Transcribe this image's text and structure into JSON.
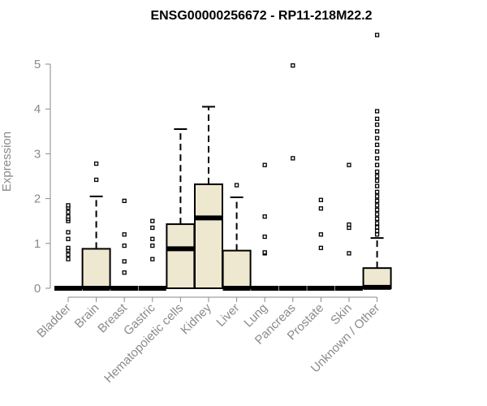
{
  "chart_data": {
    "type": "box",
    "title": "ENSG00000256672 - RP11-218M22.2",
    "xlabel": "",
    "ylabel": "Expression",
    "ylim": [
      -0.1,
      5.7
    ],
    "yticks": [
      0,
      1,
      2,
      3,
      4,
      5
    ],
    "grid": false,
    "legend": "none",
    "colors": {
      "box_fill": "#efe8d0",
      "box_stroke": "#000000",
      "axis": "#8a8a8a"
    },
    "categories": [
      "Bladder",
      "Brain",
      "Breast",
      "Gastric",
      "Hematopoietic cells",
      "Kidney",
      "Liver",
      "Lung",
      "Pancreas",
      "Prostate",
      "Skin",
      "Unknown / Other"
    ],
    "boxes": [
      {
        "min": 0,
        "q1": 0,
        "median": 0,
        "q3": 0,
        "max": 0,
        "outliers": [
          0.65,
          0.75,
          0.85,
          0.9,
          1.1,
          1.25,
          1.5,
          1.55,
          1.6,
          1.7,
          1.8,
          1.85
        ]
      },
      {
        "min": 0,
        "q1": 0,
        "median": 0,
        "q3": 0.88,
        "max": 2.05,
        "outliers": [
          2.42,
          2.78
        ]
      },
      {
        "min": 0,
        "q1": 0,
        "median": 0,
        "q3": 0,
        "max": 0,
        "outliers": [
          0.35,
          0.6,
          0.95,
          1.2,
          1.95
        ]
      },
      {
        "min": 0,
        "q1": 0,
        "median": 0,
        "q3": 0,
        "max": 0,
        "outliers": [
          0.65,
          0.95,
          1.1,
          1.35,
          1.5
        ]
      },
      {
        "min": 0,
        "q1": 0,
        "median": 0.88,
        "q3": 1.43,
        "max": 3.55,
        "outliers": []
      },
      {
        "min": 0,
        "q1": 0,
        "median": 1.57,
        "q3": 2.32,
        "max": 4.05,
        "outliers": []
      },
      {
        "min": 0,
        "q1": 0,
        "median": 0,
        "q3": 0.84,
        "max": 2.03,
        "outliers": [
          2.3
        ]
      },
      {
        "min": 0,
        "q1": 0,
        "median": 0,
        "q3": 0,
        "max": 0,
        "outliers": [
          0.78,
          0.8,
          1.15,
          1.6,
          2.75
        ]
      },
      {
        "min": 0,
        "q1": 0,
        "median": 0,
        "q3": 0,
        "max": 0,
        "outliers": [
          2.9,
          4.97
        ]
      },
      {
        "min": 0,
        "q1": 0,
        "median": 0,
        "q3": 0,
        "max": 0,
        "outliers": [
          0.9,
          1.2,
          1.78,
          1.97
        ]
      },
      {
        "min": 0,
        "q1": 0,
        "median": 0,
        "q3": 0,
        "max": 0,
        "outliers": [
          0.78,
          1.35,
          1.42,
          2.75
        ]
      },
      {
        "min": 0,
        "q1": 0,
        "median": 0.02,
        "q3": 0.45,
        "max": 1.12,
        "outliers": [
          1.2,
          1.28,
          1.36,
          1.45,
          1.55,
          1.65,
          1.75,
          1.85,
          1.95,
          2.05,
          2.15,
          2.28,
          2.4,
          2.5,
          2.6,
          2.75,
          2.9,
          3.05,
          3.2,
          3.35,
          3.5,
          3.65,
          3.78,
          3.95,
          5.65
        ]
      }
    ]
  }
}
